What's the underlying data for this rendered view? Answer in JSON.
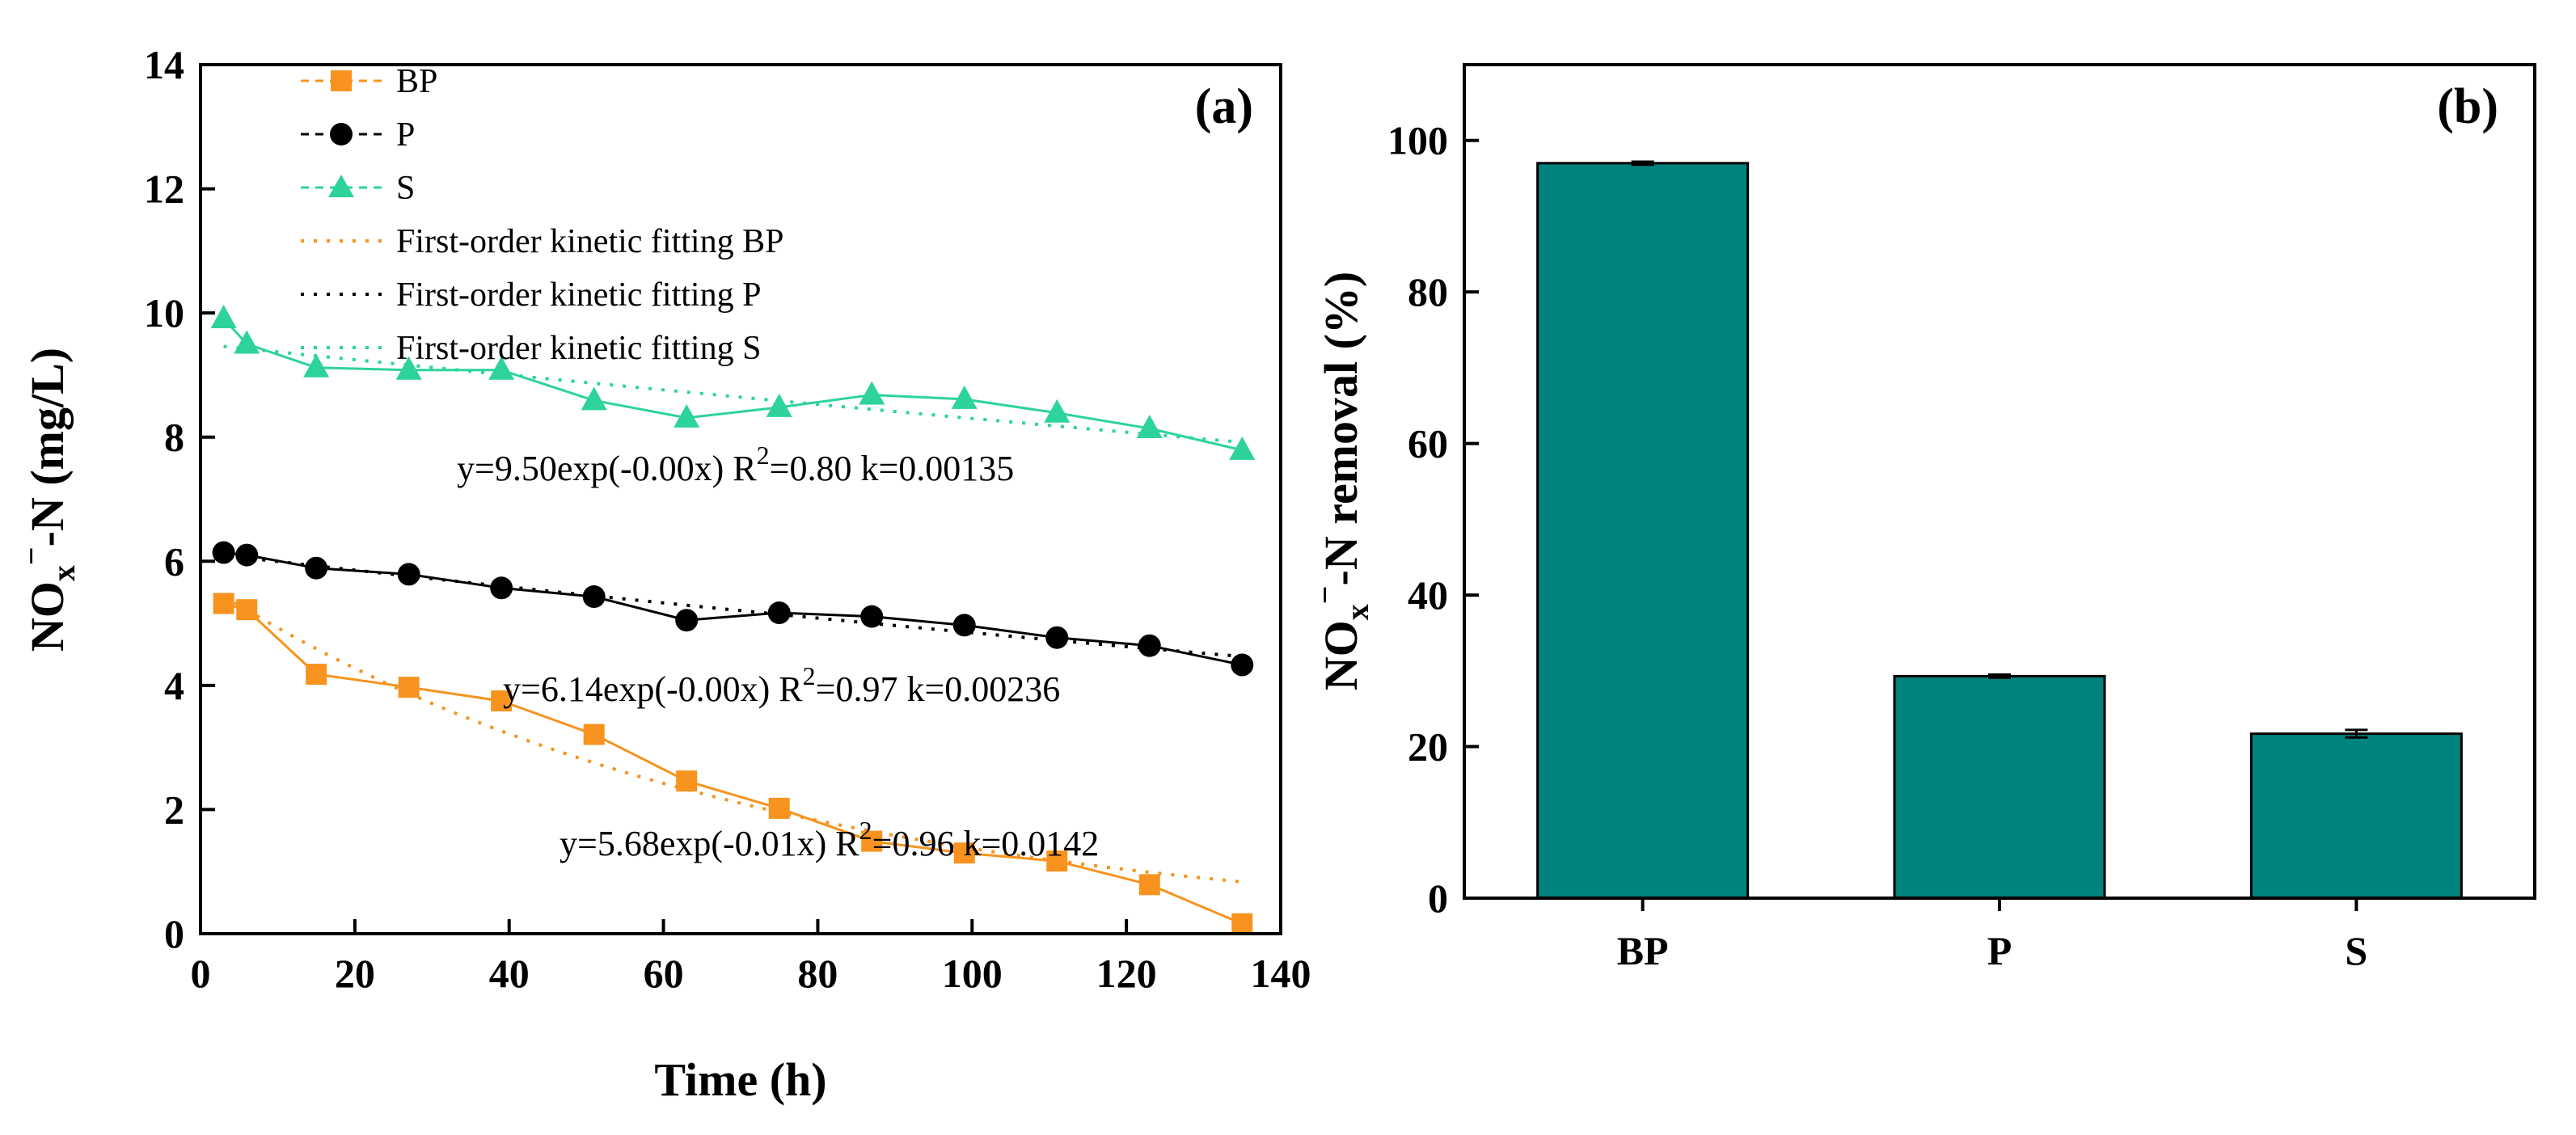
{
  "chart_data": [
    {
      "type": "line",
      "panel_label": "(a)",
      "xlabel": "Time (h)",
      "ylabel": {
        "main": "NO",
        "sub": "x",
        "sup": "−",
        "rest": "-N (mg/L)"
      },
      "xlim": [
        0,
        140
      ],
      "ylim": [
        0,
        14
      ],
      "xticks": [
        0,
        20,
        40,
        60,
        80,
        100,
        120,
        140
      ],
      "yticks": [
        0,
        2,
        4,
        6,
        8,
        10,
        12,
        14
      ],
      "legend_position": "top-left",
      "series": [
        {
          "name": "BP",
          "marker": "square",
          "color": "#F7931E",
          "x": [
            3,
            6,
            15,
            27,
            39,
            51,
            63,
            75,
            87,
            99,
            111,
            123,
            135
          ],
          "y": [
            5.32,
            5.22,
            4.18,
            3.97,
            3.75,
            3.21,
            2.46,
            2.02,
            1.49,
            1.3,
            1.17,
            0.79,
            0.16
          ]
        },
        {
          "name": "P",
          "marker": "circle",
          "color": "#000000",
          "x": [
            3,
            6,
            15,
            27,
            39,
            51,
            63,
            75,
            87,
            99,
            111,
            123,
            135
          ],
          "y": [
            6.14,
            6.1,
            5.89,
            5.79,
            5.57,
            5.43,
            5.05,
            5.17,
            5.11,
            4.97,
            4.77,
            4.64,
            4.33
          ]
        },
        {
          "name": "S",
          "marker": "triangle",
          "color": "#2DD39B",
          "x": [
            3,
            6,
            15,
            27,
            39,
            51,
            63,
            75,
            87,
            99,
            111,
            123,
            135
          ],
          "y": [
            9.91,
            9.5,
            9.12,
            9.08,
            9.08,
            8.59,
            8.31,
            8.48,
            8.68,
            8.61,
            8.39,
            8.14,
            7.79
          ]
        }
      ],
      "fits": [
        {
          "name": "First-order kinetic fitting BP",
          "color": "#F7931E",
          "a": 5.68,
          "k": 0.0142,
          "eq": {
            "prefix": "y=5.68exp(-0.01x)  R",
            "sup": "2",
            "suffix": "=0.96  k=0.0142"
          }
        },
        {
          "name": "First-order kinetic fitting P",
          "color": "#000000",
          "a": 6.14,
          "k": 0.00236,
          "eq": {
            "prefix": "y=6.14exp(-0.00x)  R",
            "sup": "2",
            "suffix": "=0.97  k=0.00236"
          }
        },
        {
          "name": "First-order kinetic fitting S",
          "color": "#2DD39B",
          "a": 9.5,
          "k": 0.00135,
          "eq": {
            "prefix": "y=9.50exp(-0.00x)  R",
            "sup": "2",
            "suffix": "=0.80  k=0.00135"
          }
        }
      ]
    },
    {
      "type": "bar",
      "panel_label": "(b)",
      "categories": [
        "BP",
        "P",
        "S"
      ],
      "values": [
        97.0,
        29.3,
        21.7
      ],
      "errors": [
        0.2,
        0.2,
        0.5
      ],
      "bar_color": "#00827F",
      "xlabel": "",
      "ylabel": {
        "main": "NO",
        "sub": "x",
        "sup": "−",
        "rest": "-N removal (%)"
      },
      "ylim": [
        0,
        110
      ],
      "yticks": [
        0,
        20,
        40,
        60,
        80,
        100
      ]
    }
  ]
}
